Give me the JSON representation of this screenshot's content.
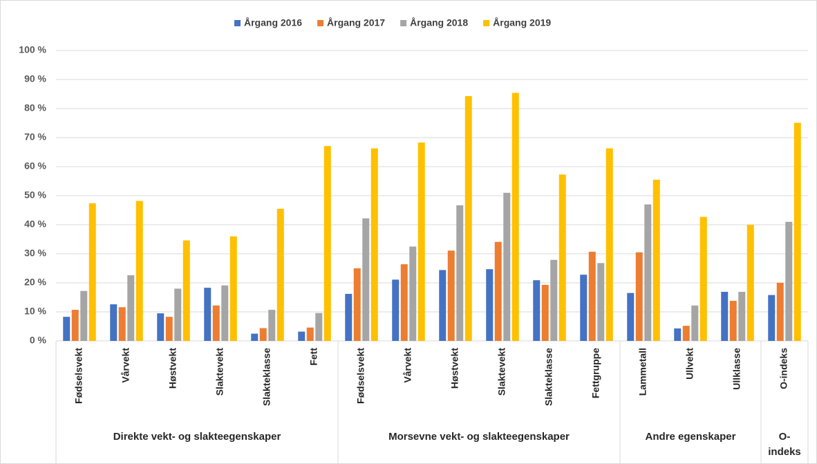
{
  "chart_data": {
    "type": "bar",
    "groups": [
      {
        "label": "Direkte vekt- og slakteegenskaper",
        "categories": [
          "Fødselsvekt",
          "Vårvekt",
          "Høstvekt",
          "Slaktevekt",
          "Slakteklasse",
          "Fett"
        ]
      },
      {
        "label": "Morsevne vekt- og slakteegenskaper",
        "categories": [
          "Fødselsvekt",
          "Vårvekt",
          "Høstvekt",
          "Slaktevekt",
          "Slakteklasse",
          "Fettgruppe"
        ]
      },
      {
        "label": "Andre egenskaper",
        "categories": [
          "Lammetall",
          "Ullvekt",
          "Ullklasse"
        ]
      },
      {
        "label": "O-indeks",
        "categories": [
          "O-indeks"
        ]
      }
    ],
    "series": [
      {
        "name": "Årgang 2016",
        "color": "#4472c4",
        "values": [
          8.3,
          12.6,
          9.5,
          18.3,
          2.5,
          3.2,
          16.2,
          21.1,
          24.4,
          24.7,
          20.9,
          22.8,
          16.5,
          4.3,
          16.9,
          15.8
        ]
      },
      {
        "name": "Årgang 2017",
        "color": "#ed7d31",
        "values": [
          10.7,
          11.6,
          8.3,
          12.2,
          4.4,
          4.6,
          25.0,
          26.4,
          31.1,
          34.1,
          19.3,
          30.7,
          30.5,
          5.2,
          13.8,
          20.0
        ]
      },
      {
        "name": "Årgang 2018",
        "color": "#a5a5a5",
        "values": [
          17.2,
          22.6,
          18.0,
          19.1,
          10.7,
          9.6,
          42.2,
          32.5,
          46.7,
          51.0,
          27.9,
          26.8,
          47.0,
          12.2,
          16.9,
          41.0
        ]
      },
      {
        "name": "Årgang 2019",
        "color": "#ffc000",
        "values": [
          47.4,
          48.2,
          34.6,
          36.0,
          45.5,
          67.1,
          66.3,
          68.3,
          84.3,
          85.4,
          57.3,
          66.3,
          55.5,
          42.7,
          40.0,
          75.1
        ]
      }
    ],
    "ylim": [
      0,
      100
    ],
    "yticks": [
      {
        "value": 0,
        "label": "0 %"
      },
      {
        "value": 10,
        "label": "10 %"
      },
      {
        "value": 20,
        "label": "20 %"
      },
      {
        "value": 30,
        "label": "30 %"
      },
      {
        "value": 40,
        "label": "40 %"
      },
      {
        "value": 50,
        "label": "50 %"
      },
      {
        "value": 60,
        "label": "60 %"
      },
      {
        "value": 70,
        "label": "70 %"
      },
      {
        "value": 80,
        "label": "80 %"
      },
      {
        "value": 90,
        "label": "90 %"
      },
      {
        "value": 100,
        "label": "100 %"
      }
    ],
    "grid": true,
    "legend": "top"
  }
}
